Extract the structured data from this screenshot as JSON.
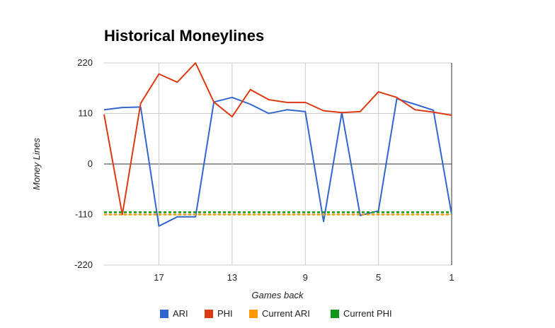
{
  "chart_data": {
    "type": "line",
    "title": "Historical Moneylines",
    "xlabel": "Games back",
    "ylabel": "Money Lines",
    "ylim": [
      -220,
      220
    ],
    "yticks": [
      220,
      110,
      0,
      -110,
      -220
    ],
    "xlim": [
      20,
      1
    ],
    "xticks": [
      17,
      13,
      9,
      5,
      1
    ],
    "x": [
      20,
      19,
      18,
      17,
      16,
      15,
      14,
      13,
      12,
      11,
      10,
      9,
      8,
      7,
      6,
      5,
      4,
      3,
      2,
      1
    ],
    "grid": true,
    "legend_position": "bottom",
    "series": [
      {
        "name": "ARI",
        "color": "#3366cc",
        "style": "solid",
        "values": [
          118,
          123,
          124,
          -135,
          -115,
          -115,
          135,
          145,
          130,
          110,
          118,
          114,
          -125,
          112,
          -112,
          -102,
          142,
          130,
          117,
          -110
        ]
      },
      {
        "name": "PHI",
        "color": "#dc3912",
        "style": "solid",
        "values": [
          108,
          -110,
          132,
          196,
          178,
          220,
          135,
          103,
          162,
          140,
          134,
          134,
          116,
          112,
          114,
          157,
          145,
          118,
          113,
          106
        ]
      },
      {
        "name": "Current ARI",
        "color": "#ff9900",
        "style": "dashed",
        "values": [
          -110,
          -110,
          -110,
          -110,
          -110,
          -110,
          -110,
          -110,
          -110,
          -110,
          -110,
          -110,
          -110,
          -110,
          -110,
          -110,
          -110,
          -110,
          -110,
          -110
        ]
      },
      {
        "name": "Current PHI",
        "color": "#109618",
        "style": "dashed",
        "values": [
          -105,
          -105,
          -105,
          -105,
          -105,
          -105,
          -105,
          -105,
          -105,
          -105,
          -105,
          -105,
          -105,
          -105,
          -105,
          -105,
          -105,
          -105,
          -105,
          -105
        ]
      }
    ]
  }
}
